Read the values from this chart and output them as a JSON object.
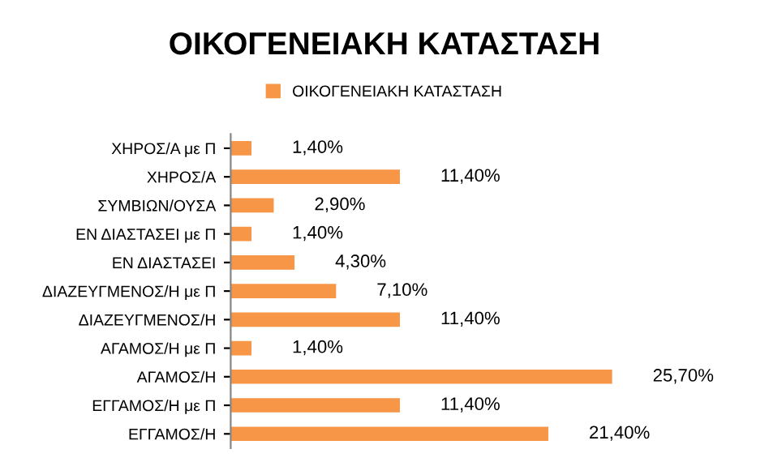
{
  "chart_data": {
    "type": "bar",
    "orientation": "horizontal",
    "title": "ΟΙΚΟΓΕΝΕΙΑΚΗ ΚΑΤΑΣΤΑΣΗ",
    "categories": [
      "ΧΗΡΟΣ/Α με Π",
      "ΧΗΡΟΣ/Α",
      "ΣΥΜΒΙΩΝ/ΟΥΣΑ",
      "ΕΝ ΔΙΑΣΤΑΣΕΙ με Π",
      "ΕΝ ΔΙΑΣΤΑΣΕΙ",
      "ΔΙΑΖΕΥΓΜΕΝΟΣ/Η με Π",
      "ΔΙΑΖΕΥΓΜΕΝΟΣ/Η",
      "ΑΓΑΜΟΣ/Η με Π",
      "ΑΓΑΜΟΣ/Η",
      "ΕΓΓΑΜΟΣ/Η με Π",
      "ΕΓΓΑΜΟΣ/Η"
    ],
    "series": [
      {
        "name": "ΟΙΚΟΓΕΝΕΙΑΚΗ ΚΑΤΑΣΤΑΣΗ",
        "color": "#f79646",
        "values": [
          1.4,
          11.4,
          2.9,
          1.4,
          4.3,
          7.1,
          11.4,
          1.4,
          25.7,
          11.4,
          21.4
        ],
        "value_labels": [
          "1,40%",
          "11,40%",
          "2,90%",
          "1,40%",
          "4,30%",
          "7,10%",
          "11,40%",
          "1,40%",
          "25,70%",
          "11,40%",
          "21,40%"
        ]
      }
    ],
    "legend": "top",
    "grid": false
  }
}
